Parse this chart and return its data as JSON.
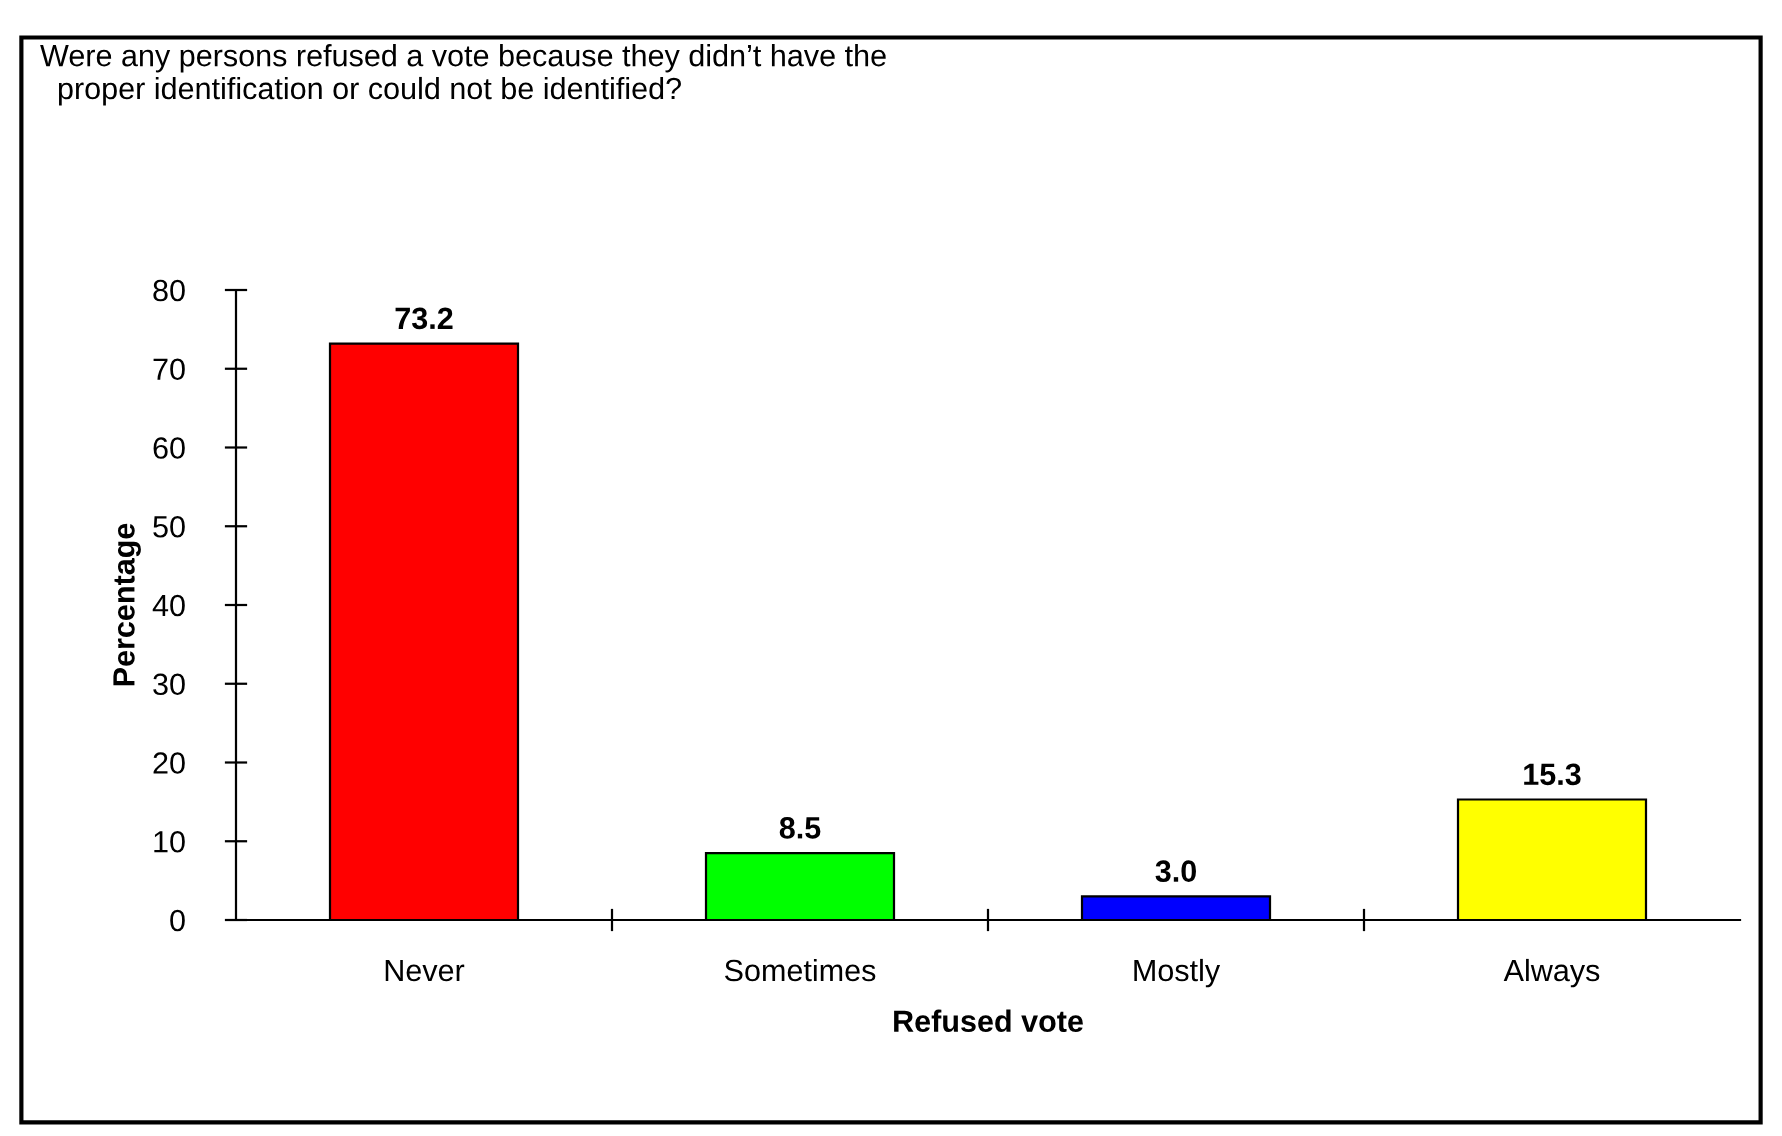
{
  "chart_data": {
    "type": "bar",
    "title": "Were any persons refused a vote because they didn’t have the\n  proper identification or could not be identified?",
    "xlabel": "Refused vote",
    "ylabel": "Percentage",
    "categories": [
      "Never",
      "Sometimes",
      "Mostly",
      "Always"
    ],
    "values": [
      73.2,
      8.5,
      3.0,
      15.3
    ],
    "colors": [
      "#ff0000",
      "#00ff00",
      "#0000ff",
      "#ffff00"
    ],
    "value_labels": [
      "73.2",
      "8.5",
      "3.0",
      "15.3"
    ],
    "ylim": [
      0,
      80
    ],
    "yticks": [
      0,
      10,
      20,
      30,
      40,
      50,
      60,
      70,
      80
    ],
    "grid": false,
    "legend": false
  }
}
